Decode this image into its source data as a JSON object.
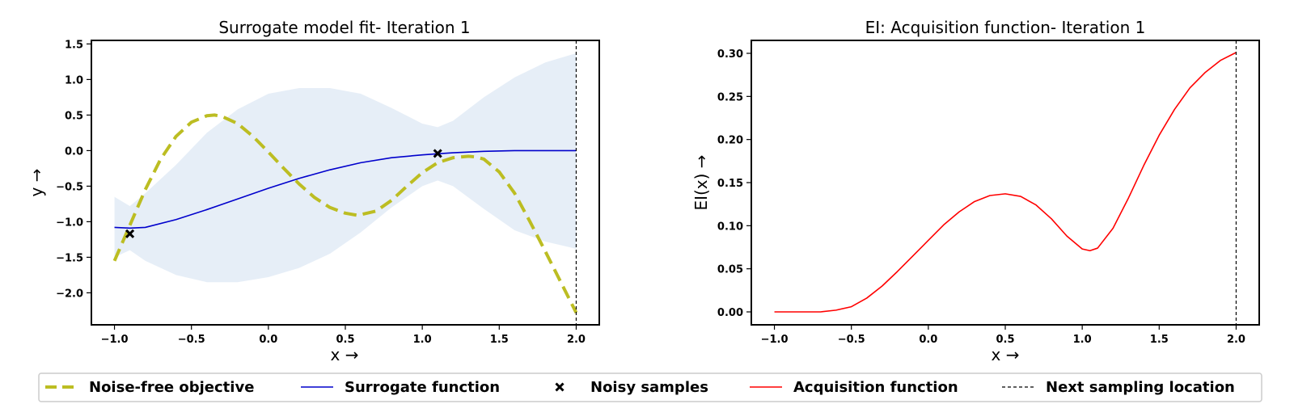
{
  "chart_data": [
    {
      "type": "line",
      "title": "Surrogate model fit- Iteration 1",
      "xlabel": "x →",
      "ylabel": "y →",
      "xlim": [
        -1.15,
        2.15
      ],
      "ylim": [
        -2.45,
        1.55
      ],
      "xticks": [
        -1.0,
        -0.5,
        0.0,
        0.5,
        1.0,
        1.5,
        2.0
      ],
      "xtick_labels": [
        "−1.0",
        "−0.5",
        "0.0",
        "0.5",
        "1.0",
        "1.5",
        "2.0"
      ],
      "yticks": [
        -2.0,
        -1.5,
        -1.0,
        -0.5,
        0.0,
        0.5,
        1.0,
        1.5
      ],
      "ytick_labels": [
        "−2.0",
        "−1.5",
        "−1.0",
        "−0.5",
        "0.0",
        "0.5",
        "1.0",
        "1.5"
      ],
      "grid": false,
      "series": [
        {
          "name": "Noise-free objective",
          "style": "dashed",
          "color": "#bcbd22",
          "x": [
            -1.0,
            -0.9,
            -0.8,
            -0.7,
            -0.6,
            -0.5,
            -0.4,
            -0.35,
            -0.3,
            -0.2,
            -0.1,
            0.0,
            0.1,
            0.2,
            0.3,
            0.4,
            0.5,
            0.58,
            0.7,
            0.8,
            0.9,
            1.0,
            1.1,
            1.2,
            1.3,
            1.35,
            1.4,
            1.5,
            1.6,
            1.7,
            1.8,
            1.9,
            2.0
          ],
          "y": [
            -1.55,
            -1.05,
            -0.55,
            -0.12,
            0.2,
            0.4,
            0.49,
            0.5,
            0.48,
            0.38,
            0.2,
            -0.02,
            -0.25,
            -0.47,
            -0.66,
            -0.8,
            -0.88,
            -0.91,
            -0.85,
            -0.7,
            -0.5,
            -0.31,
            -0.17,
            -0.1,
            -0.08,
            -0.09,
            -0.12,
            -0.3,
            -0.6,
            -1.0,
            -1.42,
            -1.85,
            -2.28
          ]
        },
        {
          "name": "Surrogate function",
          "style": "solid",
          "color": "#0000cc",
          "x": [
            -1.0,
            -0.9,
            -0.8,
            -0.6,
            -0.4,
            -0.2,
            0.0,
            0.2,
            0.4,
            0.6,
            0.8,
            1.0,
            1.1,
            1.2,
            1.4,
            1.6,
            1.8,
            2.0
          ],
          "y": [
            -1.08,
            -1.09,
            -1.08,
            -0.97,
            -0.83,
            -0.68,
            -0.53,
            -0.39,
            -0.27,
            -0.17,
            -0.1,
            -0.06,
            -0.045,
            -0.03,
            -0.01,
            0.0,
            0.0,
            0.0
          ]
        },
        {
          "name": "Confidence region",
          "style": "band",
          "color": "#dbe7f3",
          "x": [
            -1.0,
            -0.9,
            -0.8,
            -0.6,
            -0.4,
            -0.2,
            0.0,
            0.2,
            0.4,
            0.6,
            0.8,
            1.0,
            1.1,
            1.2,
            1.4,
            1.6,
            1.8,
            2.0
          ],
          "lower": [
            -1.5,
            -1.4,
            -1.55,
            -1.75,
            -1.85,
            -1.85,
            -1.78,
            -1.65,
            -1.45,
            -1.15,
            -0.8,
            -0.5,
            -0.42,
            -0.5,
            -0.82,
            -1.12,
            -1.28,
            -1.38
          ],
          "upper": [
            -0.65,
            -0.78,
            -0.6,
            -0.2,
            0.25,
            0.58,
            0.8,
            0.88,
            0.88,
            0.8,
            0.6,
            0.38,
            0.33,
            0.42,
            0.75,
            1.03,
            1.24,
            1.37
          ]
        }
      ],
      "points": {
        "name": "Noisy samples",
        "marker": "x",
        "x": [
          -0.9,
          1.1
        ],
        "y": [
          -1.17,
          -0.04
        ]
      },
      "vline": {
        "name": "Next sampling location",
        "x": 2.0,
        "style": "dashed"
      }
    },
    {
      "type": "line",
      "title": "EI: Acquisition function- Iteration 1",
      "xlabel": "x →",
      "ylabel": "EI(x) →",
      "xlim": [
        -1.15,
        2.15
      ],
      "ylim": [
        -0.015,
        0.315
      ],
      "xticks": [
        -1.0,
        -0.5,
        0.0,
        0.5,
        1.0,
        1.5,
        2.0
      ],
      "xtick_labels": [
        "−1.0",
        "−0.5",
        "0.0",
        "0.5",
        "1.0",
        "1.5",
        "2.0"
      ],
      "yticks": [
        0.0,
        0.05,
        0.1,
        0.15,
        0.2,
        0.25,
        0.3
      ],
      "ytick_labels": [
        "0.00",
        "0.05",
        "0.10",
        "0.15",
        "0.20",
        "0.25",
        "0.30"
      ],
      "grid": false,
      "series": [
        {
          "name": "Acquisition function",
          "style": "solid",
          "color": "#ff0000",
          "x": [
            -1.0,
            -0.9,
            -0.8,
            -0.7,
            -0.6,
            -0.5,
            -0.4,
            -0.3,
            -0.2,
            -0.1,
            0.0,
            0.1,
            0.2,
            0.3,
            0.4,
            0.5,
            0.6,
            0.7,
            0.8,
            0.9,
            1.0,
            1.05,
            1.1,
            1.2,
            1.3,
            1.4,
            1.5,
            1.6,
            1.7,
            1.8,
            1.9,
            2.0
          ],
          "y": [
            0.0,
            0.0,
            0.0,
            0.0,
            0.002,
            0.006,
            0.016,
            0.03,
            0.047,
            0.065,
            0.083,
            0.101,
            0.116,
            0.128,
            0.135,
            0.137,
            0.134,
            0.124,
            0.108,
            0.088,
            0.073,
            0.071,
            0.074,
            0.097,
            0.132,
            0.17,
            0.205,
            0.235,
            0.26,
            0.278,
            0.292,
            0.301
          ]
        }
      ],
      "vline": {
        "name": "Next sampling location",
        "x": 2.0,
        "style": "dashed"
      }
    }
  ],
  "legend": {
    "placement": "bottom",
    "entries": [
      {
        "label": "Noise-free objective",
        "kind": "line-dashed",
        "color": "#bcbd22"
      },
      {
        "label": "Surrogate function",
        "kind": "line",
        "color": "#0000cc"
      },
      {
        "label": "Noisy samples",
        "kind": "marker-x",
        "color": "#000000"
      },
      {
        "label": "Acquisition function",
        "kind": "line",
        "color": "#ff0000"
      },
      {
        "label": "Next sampling location",
        "kind": "line-dashed-thin",
        "color": "#000000"
      }
    ]
  }
}
